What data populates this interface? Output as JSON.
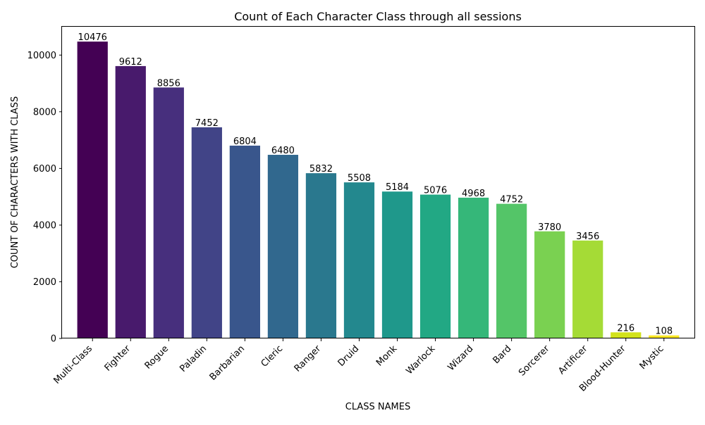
{
  "chart_data": {
    "type": "bar",
    "title": "Count of Each Character Class through all sessions",
    "xlabel": "CLASS NAMES",
    "ylabel": "COUNT OF CHARACTERS WITH CLASS",
    "categories": [
      "Multi-Class",
      "Fighter",
      "Rogue",
      "Paladin",
      "Barbarian",
      "Cleric",
      "Ranger",
      "Druid",
      "Monk",
      "Warlock",
      "Wizard",
      "Bard",
      "Sorcerer",
      "Artificer",
      "Blood-Hunter",
      "Mystic"
    ],
    "values": [
      10476,
      9612,
      8856,
      7452,
      6804,
      6480,
      5832,
      5508,
      5184,
      5076,
      4968,
      4752,
      3780,
      3456,
      216,
      108
    ],
    "value_labels": [
      "10476",
      "9612",
      "8856",
      "7452",
      "6804",
      "6480",
      "5832",
      "5508",
      "5184",
      "5076",
      "4968",
      "4752",
      "3780",
      "3456",
      "216",
      "108"
    ],
    "colors": [
      "#440154",
      "#481a6c",
      "#472f7d",
      "#414487",
      "#39568c",
      "#31688e",
      "#2a788e",
      "#23888e",
      "#1f988b",
      "#22a884",
      "#35b779",
      "#54c568",
      "#7ad151",
      "#a5db36",
      "#d2e21b",
      "#fde725"
    ],
    "ylim": [
      0,
      11000
    ],
    "yticks": [
      0,
      2000,
      4000,
      6000,
      8000,
      10000
    ],
    "ytick_labels": [
      "0",
      "2000",
      "4000",
      "6000",
      "8000",
      "10000"
    ],
    "grid": false,
    "x_tick_rotation_deg": 45
  }
}
